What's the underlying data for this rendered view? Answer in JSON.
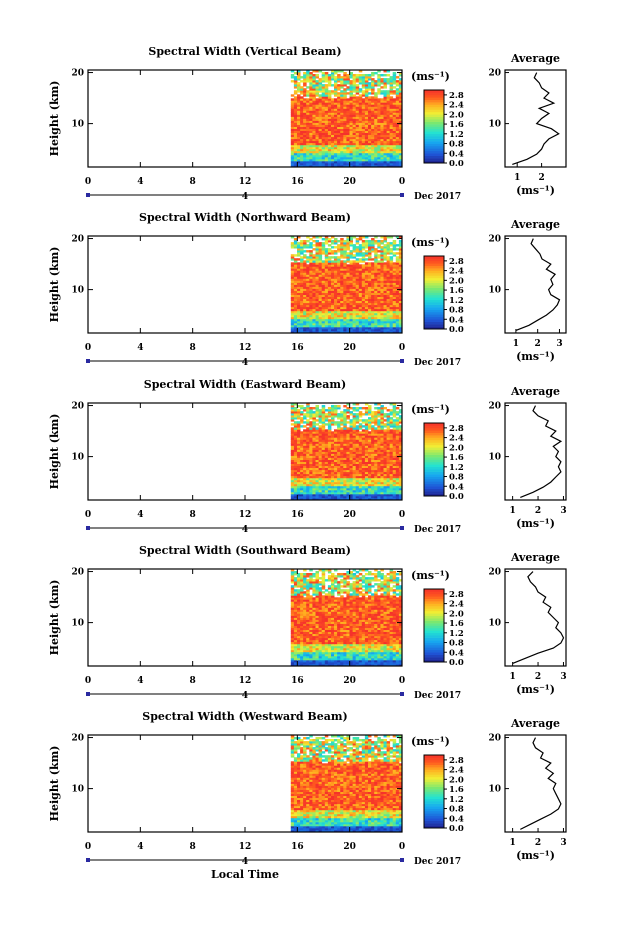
{
  "figure": {
    "xaxis_label": "Local Time",
    "date_label": "Dec 2017",
    "day_marker": "4",
    "ylabel": "Height (km)",
    "units_label": "(ms⁻¹)",
    "avg_title": "Average"
  },
  "chart_data": [
    {
      "type": "heatmap",
      "title": "Spectral Width (Vertical Beam)",
      "xlabel": "Local Time",
      "ylabel": "Height (km)",
      "x_ticks": [
        "0",
        "4",
        "8",
        "12",
        "16",
        "20",
        "0"
      ],
      "xlim_hours": [
        0,
        24
      ],
      "data_start_hour": 15.5,
      "y_ticks": [
        "10",
        "20"
      ],
      "ylim_km": [
        1.5,
        20.5
      ],
      "colorbar": {
        "unit": "(ms⁻¹)",
        "ticks": [
          "0.0",
          "0.4",
          "0.8",
          "1.2",
          "1.6",
          "2.0",
          "2.4",
          "2.8"
        ],
        "range": [
          0,
          3
        ]
      },
      "profile": {
        "title": "Average",
        "xlabel": "(ms⁻¹)",
        "x_ticks": [
          "1",
          "2"
        ],
        "xlim": [
          0.5,
          3.0
        ],
        "height_km": [
          2,
          3,
          4,
          5,
          6,
          7,
          8,
          9,
          10,
          11,
          12,
          13,
          14,
          15,
          16,
          17,
          18,
          19,
          20
        ],
        "values": [
          0.8,
          1.4,
          1.8,
          2.0,
          2.1,
          2.3,
          2.7,
          2.4,
          1.8,
          2.0,
          2.3,
          1.9,
          2.5,
          2.1,
          2.3,
          2.0,
          1.9,
          1.7,
          1.8
        ]
      }
    },
    {
      "type": "heatmap",
      "title": "Spectral Width (Northward Beam)",
      "xlabel": "Local Time",
      "ylabel": "Height (km)",
      "x_ticks": [
        "0",
        "4",
        "8",
        "12",
        "16",
        "20",
        "0"
      ],
      "xlim_hours": [
        0,
        24
      ],
      "data_start_hour": 15.5,
      "y_ticks": [
        "10",
        "20"
      ],
      "ylim_km": [
        1.5,
        20.5
      ],
      "colorbar": {
        "unit": "(ms⁻¹)",
        "ticks": [
          "0.0",
          "0.4",
          "0.8",
          "1.2",
          "1.6",
          "2.0",
          "2.4",
          "2.8"
        ],
        "range": [
          0,
          3
        ]
      },
      "profile": {
        "title": "Average",
        "xlabel": "(ms⁻¹)",
        "x_ticks": [
          "1",
          "2",
          "3"
        ],
        "xlim": [
          0.5,
          3.3
        ],
        "height_km": [
          2,
          3,
          4,
          5,
          6,
          7,
          8,
          9,
          10,
          11,
          12,
          13,
          14,
          15,
          16,
          17,
          18,
          19,
          20
        ],
        "values": [
          1.0,
          1.6,
          2.0,
          2.4,
          2.7,
          2.9,
          3.0,
          2.6,
          2.5,
          2.7,
          2.6,
          2.8,
          2.4,
          2.6,
          2.2,
          2.1,
          1.9,
          1.7,
          1.8
        ]
      }
    },
    {
      "type": "heatmap",
      "title": "Spectral Width (Eastward Beam)",
      "xlabel": "Local Time",
      "ylabel": "Height (km)",
      "x_ticks": [
        "0",
        "4",
        "8",
        "12",
        "16",
        "20",
        "0"
      ],
      "xlim_hours": [
        0,
        24
      ],
      "data_start_hour": 15.5,
      "y_ticks": [
        "10",
        "20"
      ],
      "ylim_km": [
        1.5,
        20.5
      ],
      "colorbar": {
        "unit": "(ms⁻¹)",
        "ticks": [
          "0.0",
          "0.4",
          "0.8",
          "1.2",
          "1.6",
          "2.0",
          "2.4",
          "2.8"
        ],
        "range": [
          0,
          3
        ]
      },
      "profile": {
        "title": "Average",
        "xlabel": "(ms⁻¹)",
        "x_ticks": [
          "1",
          "2",
          "3"
        ],
        "xlim": [
          0.7,
          3.1
        ],
        "height_km": [
          2,
          3,
          4,
          5,
          6,
          7,
          8,
          9,
          10,
          11,
          12,
          13,
          14,
          15,
          16,
          17,
          18,
          19,
          20
        ],
        "values": [
          1.3,
          1.8,
          2.2,
          2.5,
          2.7,
          2.9,
          2.8,
          2.9,
          2.7,
          2.8,
          2.6,
          2.9,
          2.5,
          2.7,
          2.3,
          2.4,
          2.0,
          1.8,
          1.9
        ]
      }
    },
    {
      "type": "heatmap",
      "title": "Spectral Width (Southward Beam)",
      "xlabel": "Local Time",
      "ylabel": "Height (km)",
      "x_ticks": [
        "0",
        "4",
        "8",
        "12",
        "16",
        "20",
        "0"
      ],
      "xlim_hours": [
        0,
        24
      ],
      "data_start_hour": 15.5,
      "y_ticks": [
        "10",
        "20"
      ],
      "ylim_km": [
        1.5,
        20.5
      ],
      "colorbar": {
        "unit": "(ms⁻¹)",
        "ticks": [
          "0.0",
          "0.4",
          "0.8",
          "1.2",
          "1.6",
          "2.0",
          "2.4",
          "2.8"
        ],
        "range": [
          0,
          3
        ]
      },
      "profile": {
        "title": "Average",
        "xlabel": "(ms⁻¹)",
        "x_ticks": [
          "1",
          "2",
          "3"
        ],
        "xlim": [
          0.7,
          3.1
        ],
        "height_km": [
          2,
          3,
          4,
          5,
          6,
          7,
          8,
          9,
          10,
          11,
          12,
          13,
          14,
          15,
          16,
          17,
          18,
          19,
          20
        ],
        "values": [
          1.0,
          1.5,
          2.0,
          2.6,
          2.9,
          3.0,
          2.9,
          2.7,
          2.8,
          2.6,
          2.4,
          2.5,
          2.2,
          2.3,
          2.0,
          1.9,
          1.7,
          1.6,
          1.8
        ]
      }
    },
    {
      "type": "heatmap",
      "title": "Spectral Width (Westward Beam)",
      "xlabel": "Local Time",
      "ylabel": "Height (km)",
      "x_ticks": [
        "0",
        "4",
        "8",
        "12",
        "16",
        "20",
        "0"
      ],
      "xlim_hours": [
        0,
        24
      ],
      "data_start_hour": 15.5,
      "y_ticks": [
        "10",
        "20"
      ],
      "ylim_km": [
        1.5,
        20.5
      ],
      "colorbar": {
        "unit": "(ms⁻¹)",
        "ticks": [
          "0.0",
          "0.4",
          "0.8",
          "1.2",
          "1.6",
          "2.0",
          "2.4",
          "2.8"
        ],
        "range": [
          0,
          3
        ]
      },
      "profile": {
        "title": "Average",
        "xlabel": "(ms⁻¹)",
        "x_ticks": [
          "1",
          "2",
          "3"
        ],
        "xlim": [
          0.7,
          3.1
        ],
        "height_km": [
          2,
          3,
          4,
          5,
          6,
          7,
          8,
          9,
          10,
          11,
          12,
          13,
          14,
          15,
          16,
          17,
          18,
          19,
          20
        ],
        "values": [
          1.3,
          1.7,
          2.1,
          2.5,
          2.8,
          2.9,
          2.8,
          2.7,
          2.6,
          2.7,
          2.4,
          2.6,
          2.3,
          2.5,
          2.1,
          2.2,
          1.9,
          1.8,
          1.9
        ]
      }
    }
  ]
}
